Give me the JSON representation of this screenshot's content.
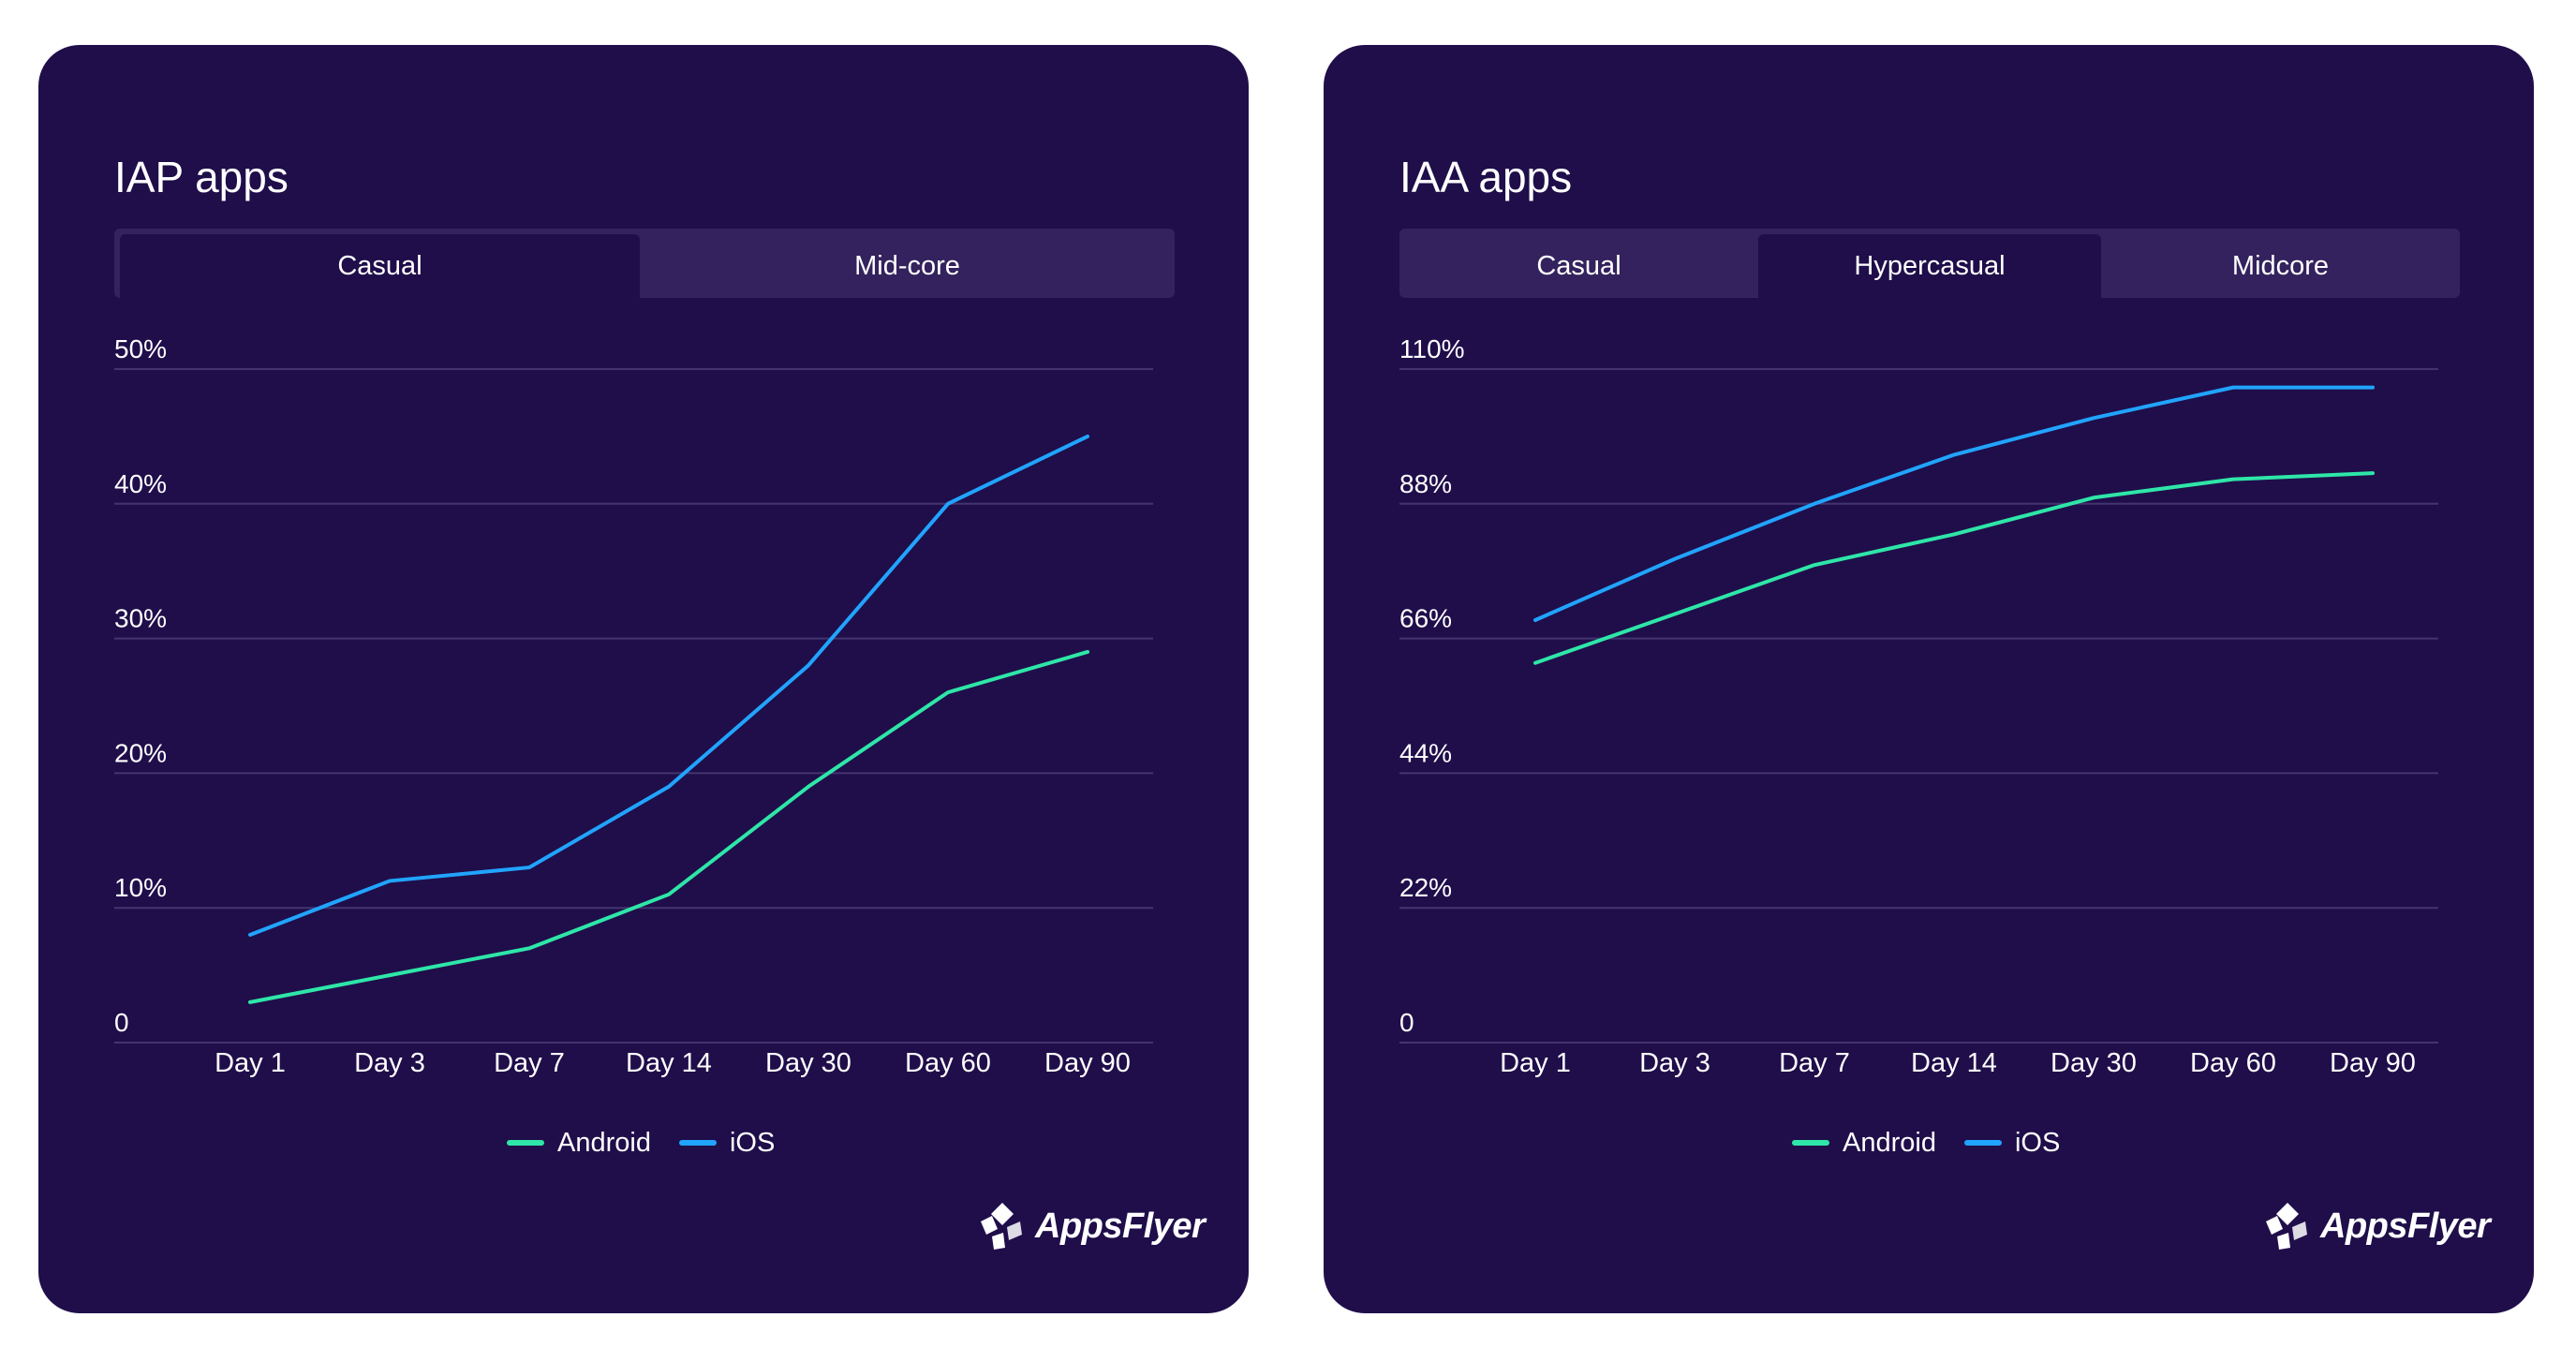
{
  "colors": {
    "card_bg": "#1f0e4a",
    "android": "#2ee6a8",
    "ios": "#21a4ff"
  },
  "brand": {
    "logo_text": "AppsFlyer",
    "logo_icon": "appsflyer-logo-icon"
  },
  "charts": [
    {
      "title": "IAP apps",
      "tabs": [
        {
          "label": "Casual",
          "active": true
        },
        {
          "label": "Mid-core",
          "active": false
        }
      ],
      "legend": {
        "android": "Android",
        "ios": "iOS"
      }
    },
    {
      "title": "IAA apps",
      "tabs": [
        {
          "label": "Casual",
          "active": false
        },
        {
          "label": "Hypercasual",
          "active": true
        },
        {
          "label": "Midcore",
          "active": false
        }
      ],
      "legend": {
        "android": "Android",
        "ios": "iOS"
      }
    }
  ],
  "chart_data": [
    {
      "type": "line",
      "title": "IAP apps",
      "selected_tab": "Casual",
      "categories": [
        "Day 1",
        "Day 3",
        "Day 7",
        "Day 14",
        "Day 30",
        "Day 60",
        "Day 90"
      ],
      "yticks": [
        "0",
        "10%",
        "20%",
        "30%",
        "40%",
        "50%"
      ],
      "ylim": [
        0,
        50
      ],
      "series": [
        {
          "name": "Android",
          "color": "#2ee6a8",
          "values": [
            3,
            5,
            7,
            11,
            19,
            26,
            29
          ]
        },
        {
          "name": "iOS",
          "color": "#21a4ff",
          "values": [
            8,
            12,
            13,
            19,
            28,
            40,
            45
          ]
        }
      ],
      "legend": "bottom-center"
    },
    {
      "type": "line",
      "title": "IAA apps",
      "selected_tab": "Hypercasual",
      "categories": [
        "Day 1",
        "Day 3",
        "Day 7",
        "Day 14",
        "Day 30",
        "Day 60",
        "Day 90"
      ],
      "yticks": [
        "0",
        "22%",
        "44%",
        "66%",
        "88%",
        "110%"
      ],
      "ylim": [
        0,
        110
      ],
      "series": [
        {
          "name": "Android",
          "color": "#2ee6a8",
          "values": [
            62,
            70,
            78,
            83,
            89,
            92,
            93
          ]
        },
        {
          "name": "iOS",
          "color": "#21a4ff",
          "values": [
            69,
            79,
            88,
            96,
            102,
            107,
            107
          ]
        }
      ],
      "legend": "bottom-center"
    }
  ]
}
